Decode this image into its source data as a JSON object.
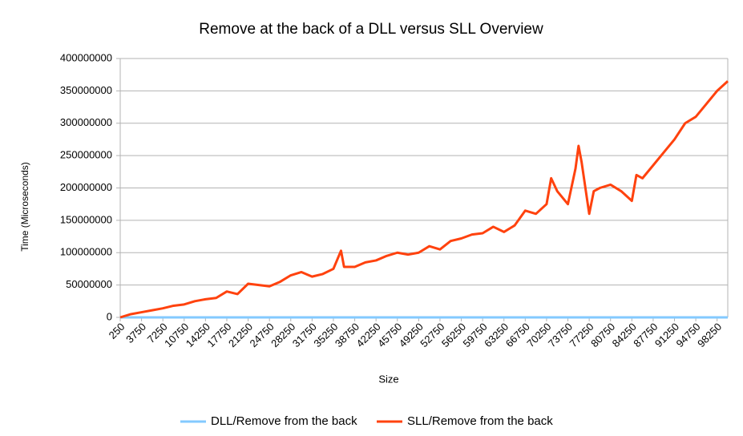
{
  "chart_data": {
    "type": "line",
    "title": "Remove at the back of a DLL versus SLL Overview",
    "x_label": "Size",
    "y_label": "Time (Microseconds)",
    "x": [
      250,
      2000,
      3750,
      5500,
      7250,
      9000,
      10750,
      12500,
      14250,
      16000,
      17750,
      19500,
      21250,
      23000,
      24750,
      26500,
      28250,
      30000,
      31750,
      33500,
      35250,
      36500,
      37000,
      38750,
      40500,
      42250,
      44000,
      45750,
      47500,
      49250,
      51000,
      52750,
      54500,
      56250,
      58000,
      59750,
      61500,
      63250,
      65000,
      66750,
      68500,
      70250,
      71000,
      72000,
      73750,
      75000,
      75500,
      76000,
      77250,
      78000,
      79000,
      80750,
      82500,
      84250,
      85000,
      86000,
      87750,
      89500,
      91250,
      93000,
      94750,
      96500,
      98250,
      100000
    ],
    "series": [
      {
        "name": "DLL/Remove from the back",
        "color": "#83caff",
        "values": [
          0,
          0,
          0,
          0,
          0,
          0,
          0,
          0,
          0,
          0,
          0,
          0,
          0,
          0,
          0,
          0,
          0,
          0,
          0,
          0,
          0,
          0,
          0,
          0,
          0,
          0,
          0,
          0,
          0,
          0,
          0,
          0,
          0,
          0,
          0,
          0,
          0,
          0,
          0,
          0,
          0,
          0,
          0,
          0,
          0,
          0,
          0,
          0,
          0,
          0,
          0,
          0,
          0,
          0,
          0,
          0,
          0,
          0,
          0,
          0,
          0,
          0,
          0,
          0
        ]
      },
      {
        "name": "SLL/Remove from the back",
        "color": "#ff420e",
        "values": [
          0,
          5000000,
          8000000,
          11000000,
          14000000,
          18000000,
          20000000,
          25000000,
          28000000,
          30000000,
          40000000,
          36000000,
          52000000,
          50000000,
          48000000,
          55000000,
          65000000,
          70000000,
          63000000,
          67000000,
          75000000,
          103000000,
          78000000,
          78000000,
          85000000,
          88000000,
          95000000,
          100000000,
          97000000,
          100000000,
          110000000,
          105000000,
          118000000,
          122000000,
          128000000,
          130000000,
          140000000,
          132000000,
          142000000,
          165000000,
          160000000,
          175000000,
          215000000,
          195000000,
          175000000,
          230000000,
          265000000,
          240000000,
          160000000,
          195000000,
          200000000,
          205000000,
          195000000,
          180000000,
          220000000,
          215000000,
          235000000,
          255000000,
          275000000,
          300000000,
          310000000,
          330000000,
          350000000,
          365000000
        ]
      }
    ],
    "xlim": [
      250,
      100000
    ],
    "xticks": [
      250,
      3750,
      7250,
      10750,
      14250,
      17750,
      21250,
      24750,
      28250,
      31750,
      35250,
      38750,
      42250,
      45750,
      49250,
      52750,
      56250,
      59750,
      63250,
      66750,
      70250,
      73750,
      77250,
      80750,
      84250,
      87750,
      91250,
      94750,
      98250
    ],
    "ylim": [
      0,
      400000000
    ],
    "yticks": [
      0,
      50000000,
      100000000,
      150000000,
      200000000,
      250000000,
      300000000,
      350000000,
      400000000
    ],
    "grid": true,
    "legend": "bottom"
  }
}
